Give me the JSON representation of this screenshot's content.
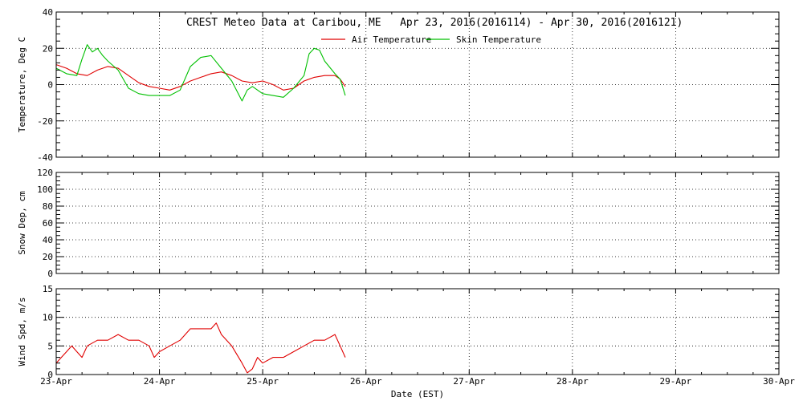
{
  "title": "CREST Meteo Data at Caribou, ME   Apr 23, 2016(2016114) - Apr 30, 2016(2016121)",
  "xlabel": "Date (EST)",
  "colors": {
    "air": "#e00000",
    "skin": "#00c000",
    "wind": "#e00000",
    "axis": "#000000"
  },
  "chart_data": [
    {
      "type": "line",
      "ylabel": "Temperature, Deg C",
      "ylim": [
        -40,
        40
      ],
      "yticks": [
        "-40",
        "-20",
        "0",
        "20",
        "40"
      ],
      "xlim": [
        0,
        7
      ],
      "xticks": [
        "23-Apr",
        "24-Apr",
        "25-Apr",
        "26-Apr",
        "27-Apr",
        "28-Apr",
        "29-Apr",
        "30-Apr"
      ],
      "grid": true,
      "legend": "top-center",
      "series": [
        {
          "name": "Air Temperature",
          "x": [
            0,
            0.1,
            0.2,
            0.3,
            0.4,
            0.5,
            0.6,
            0.7,
            0.8,
            0.9,
            1.0,
            1.1,
            1.2,
            1.3,
            1.4,
            1.5,
            1.6,
            1.7,
            1.8,
            1.9,
            2.0,
            2.1,
            2.2,
            2.3,
            2.4,
            2.5,
            2.6,
            2.7,
            2.75,
            2.8
          ],
          "values": [
            11,
            9,
            6,
            5,
            8,
            10,
            9,
            5,
            1,
            -1,
            -2,
            -3,
            -1,
            2,
            4,
            6,
            7,
            5,
            2,
            1,
            2,
            0,
            -3,
            -2,
            2,
            4,
            5,
            5,
            3,
            -1
          ]
        },
        {
          "name": "Skin Temperature",
          "x": [
            0,
            0.1,
            0.2,
            0.25,
            0.3,
            0.35,
            0.4,
            0.45,
            0.5,
            0.6,
            0.7,
            0.8,
            0.9,
            1.0,
            1.1,
            1.2,
            1.3,
            1.4,
            1.5,
            1.6,
            1.7,
            1.8,
            1.85,
            1.9,
            2.0,
            2.1,
            2.2,
            2.3,
            2.4,
            2.45,
            2.5,
            2.55,
            2.6,
            2.7,
            2.75,
            2.8
          ],
          "values": [
            9,
            6,
            5,
            14,
            22,
            18,
            20,
            16,
            13,
            8,
            -2,
            -5,
            -6,
            -6,
            -6,
            -3,
            10,
            15,
            16,
            9,
            2,
            -9,
            -3,
            -1,
            -5,
            -6,
            -7,
            -2,
            5,
            17,
            20,
            19,
            13,
            6,
            3,
            -6
          ]
        }
      ]
    },
    {
      "type": "line",
      "ylabel": "Snow Dep, cm",
      "ylim": [
        0,
        120
      ],
      "yticks": [
        "0",
        "20",
        "40",
        "60",
        "80",
        "100",
        "120"
      ],
      "xlim": [
        0,
        7
      ],
      "xticks": [
        "23-Apr",
        "24-Apr",
        "25-Apr",
        "26-Apr",
        "27-Apr",
        "28-Apr",
        "29-Apr",
        "30-Apr"
      ],
      "grid": true,
      "series": []
    },
    {
      "type": "line",
      "ylabel": "Wind Spd, m/s",
      "ylim": [
        0,
        15
      ],
      "yticks": [
        "0",
        "5",
        "10",
        "15"
      ],
      "xlim": [
        0,
        7
      ],
      "xticks": [
        "23-Apr",
        "24-Apr",
        "25-Apr",
        "26-Apr",
        "27-Apr",
        "28-Apr",
        "29-Apr",
        "30-Apr"
      ],
      "grid": true,
      "series": [
        {
          "x": [
            0,
            0.05,
            0.1,
            0.15,
            0.2,
            0.25,
            0.3,
            0.4,
            0.5,
            0.6,
            0.7,
            0.8,
            0.9,
            0.95,
            1.0,
            1.1,
            1.2,
            1.3,
            1.4,
            1.5,
            1.55,
            1.6,
            1.7,
            1.8,
            1.85,
            1.9,
            1.95,
            2.0,
            2.1,
            2.2,
            2.3,
            2.4,
            2.5,
            2.6,
            2.7,
            2.75,
            2.8
          ],
          "values": [
            2,
            3,
            4,
            5,
            4,
            3,
            5,
            6,
            6,
            7,
            6,
            6,
            5,
            3,
            4,
            5,
            6,
            8,
            8,
            8,
            9,
            7,
            5,
            2,
            0.3,
            1,
            3,
            2,
            3,
            3,
            4,
            5,
            6,
            6,
            7,
            5,
            3
          ]
        }
      ]
    }
  ]
}
